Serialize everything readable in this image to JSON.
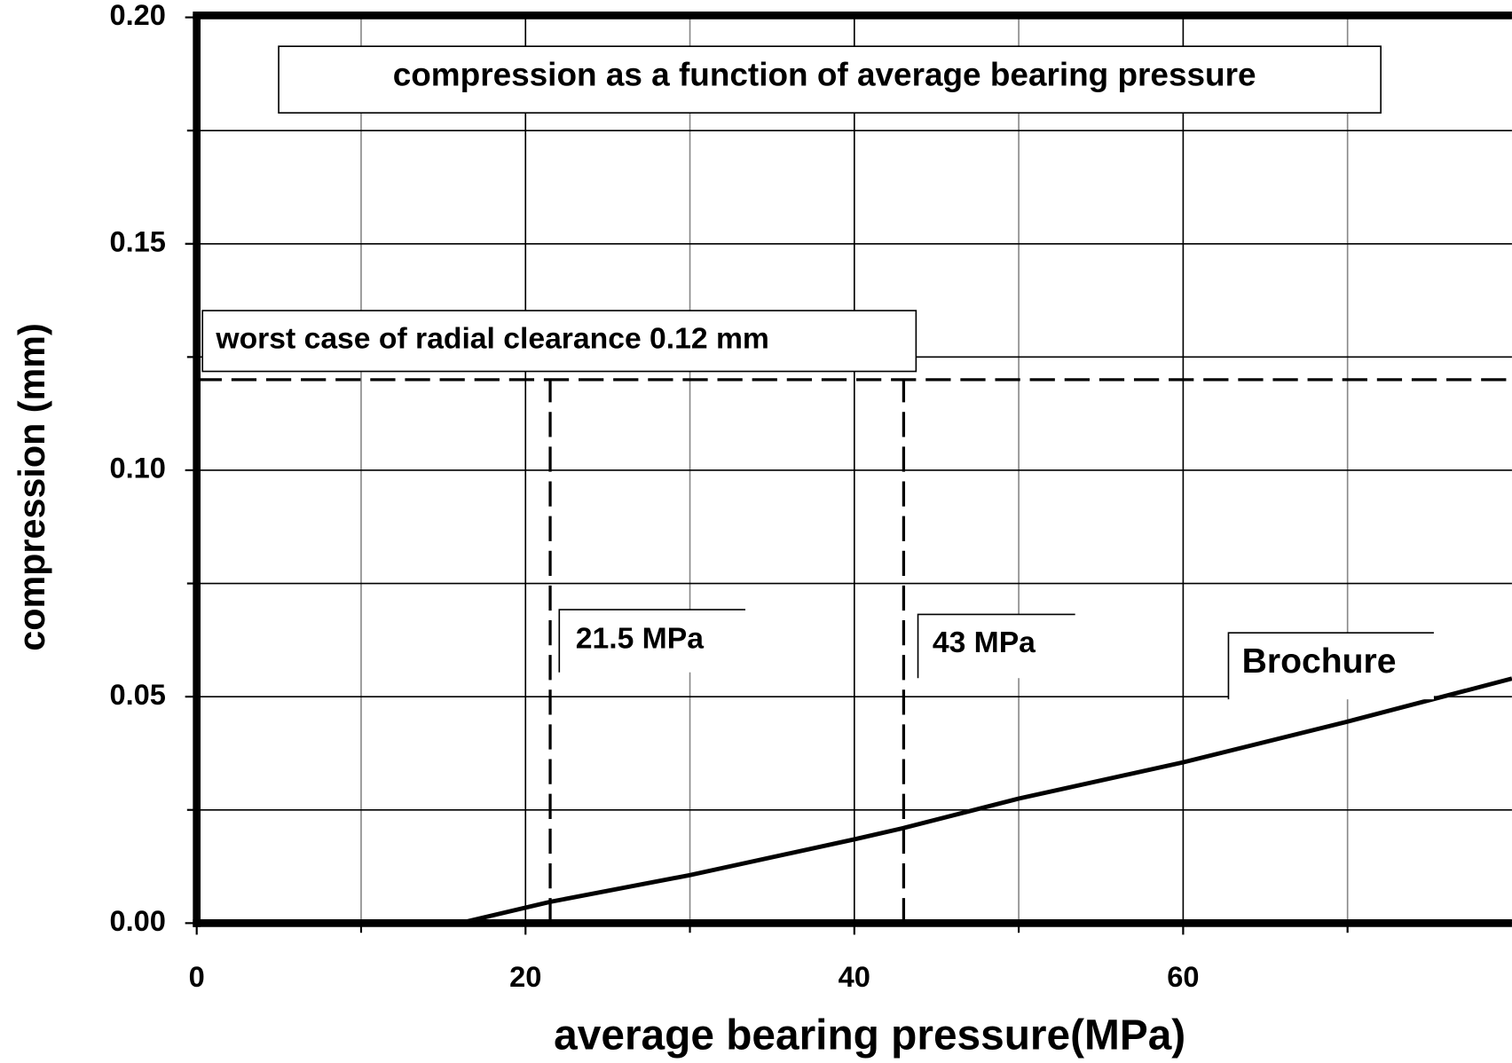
{
  "chart_data": {
    "type": "line",
    "title": "compression as a function of average bearing pressure",
    "xlabel": "average bearing pressure(MPa)",
    "ylabel": "compression (mm)",
    "x": [
      16,
      21.5,
      30,
      40,
      43,
      50,
      60,
      70,
      80
    ],
    "series": [
      {
        "name": "Brochure",
        "color": "#000000",
        "values": [
          0,
          0.0047,
          0.0106,
          0.0185,
          0.021,
          0.0275,
          0.0355,
          0.0445,
          0.054
        ]
      }
    ],
    "xlim": [
      0,
      80
    ],
    "ylim": [
      0,
      0.2
    ],
    "xticks": [
      0,
      20,
      40,
      60
    ],
    "yticks": [
      {
        "value": 0,
        "label": "0.00"
      },
      {
        "value": 0.05,
        "label": "0.05"
      },
      {
        "value": 0.1,
        "label": "0.10"
      },
      {
        "value": 0.15,
        "label": "0.15"
      },
      {
        "value": 0.2,
        "label": "0.20"
      }
    ],
    "xminor_ticks": [
      10,
      30,
      50,
      70
    ],
    "yminor_ticks": [
      0.025,
      0.075,
      0.125,
      0.175
    ],
    "grid": true,
    "hlines": [
      {
        "value": 0.12,
        "label": "worst case of radial clearance 0.12 mm"
      }
    ],
    "vlines": [
      {
        "value": 21.5,
        "label": "21.5 MPa"
      },
      {
        "value": 43,
        "label": "43 MPa"
      }
    ]
  }
}
